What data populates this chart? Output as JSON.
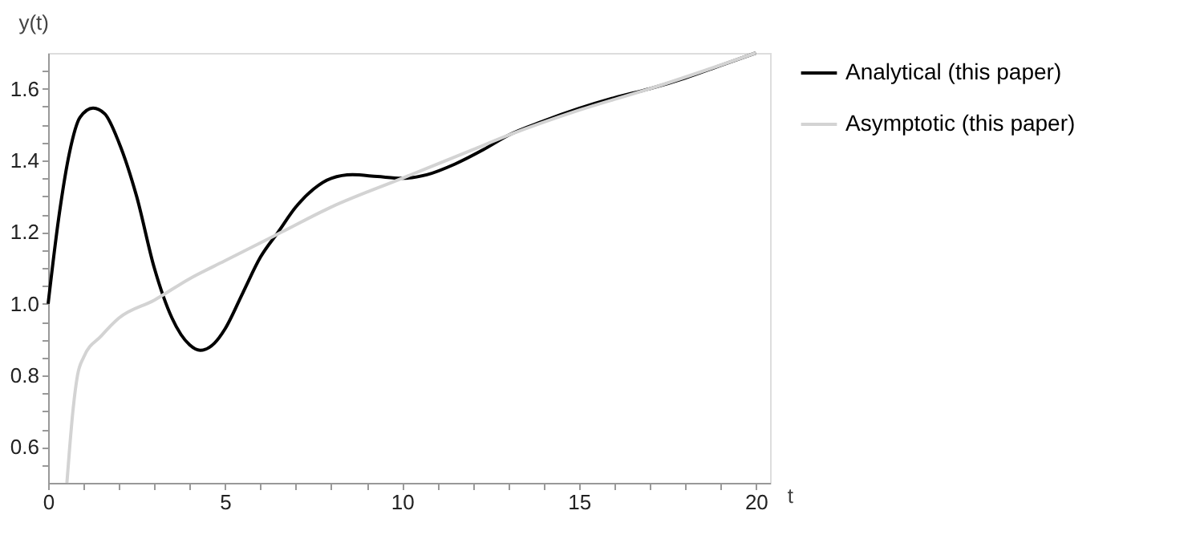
{
  "chart_data": {
    "type": "line",
    "xlabel": "t",
    "ylabel": "y(t)",
    "xlim": [
      0,
      20.4
    ],
    "ylim": [
      0.5,
      1.7
    ],
    "xticks": [
      0,
      {
        "value": 1,
        "label": null
      },
      {
        "value": 2,
        "label": null
      },
      {
        "value": 3,
        "label": null
      },
      {
        "value": 4,
        "label": null
      },
      5,
      {
        "value": 6,
        "label": null
      },
      {
        "value": 7,
        "label": null
      },
      {
        "value": 8,
        "label": null
      },
      {
        "value": 9,
        "label": null
      },
      10,
      {
        "value": 11,
        "label": null
      },
      {
        "value": 12,
        "label": null
      },
      {
        "value": 13,
        "label": null
      },
      {
        "value": 14,
        "label": null
      },
      15,
      {
        "value": 16,
        "label": null
      },
      {
        "value": 17,
        "label": null
      },
      {
        "value": 18,
        "label": null
      },
      {
        "value": 19,
        "label": null
      },
      20
    ],
    "yticks": [
      {
        "value": 0.55,
        "label": null
      },
      {
        "value": 0.6,
        "label": "0.6"
      },
      {
        "value": 0.65,
        "label": null
      },
      {
        "value": 0.7,
        "label": null
      },
      {
        "value": 0.75,
        "label": null
      },
      {
        "value": 0.8,
        "label": "0.8"
      },
      {
        "value": 0.85,
        "label": null
      },
      {
        "value": 0.9,
        "label": null
      },
      {
        "value": 0.95,
        "label": null
      },
      {
        "value": 1.0,
        "label": "1.0"
      },
      {
        "value": 1.05,
        "label": null
      },
      {
        "value": 1.1,
        "label": null
      },
      {
        "value": 1.15,
        "label": null
      },
      {
        "value": 1.2,
        "label": "1.2"
      },
      {
        "value": 1.25,
        "label": null
      },
      {
        "value": 1.3,
        "label": null
      },
      {
        "value": 1.35,
        "label": null
      },
      {
        "value": 1.4,
        "label": "1.4"
      },
      {
        "value": 1.45,
        "label": null
      },
      {
        "value": 1.5,
        "label": null
      },
      {
        "value": 1.55,
        "label": null
      },
      {
        "value": 1.6,
        "label": "1.6"
      },
      {
        "value": 1.65,
        "label": null
      }
    ],
    "grid": false,
    "legend": "right",
    "marker": "none",
    "line_style": "solid",
    "series": [
      {
        "name": "Analytical (this paper)",
        "color": "#000000",
        "x": [
          0,
          0.3,
          0.6,
          0.9,
          1.27,
          1.6,
          2,
          2.5,
          3,
          3.5,
          4,
          4.3,
          4.7,
          5,
          5.5,
          6,
          6.5,
          7,
          7.5,
          8,
          8.6,
          9.3,
          10,
          10.7,
          11.5,
          12.3,
          13,
          14,
          15,
          16,
          17,
          18,
          19,
          20
        ],
        "values": [
          1.0,
          1.24,
          1.42,
          1.52,
          1.546,
          1.53,
          1.45,
          1.3,
          1.1,
          0.96,
          0.885,
          0.87,
          0.89,
          0.93,
          1.03,
          1.13,
          1.2,
          1.27,
          1.32,
          1.35,
          1.36,
          1.355,
          1.35,
          1.36,
          1.39,
          1.43,
          1.47,
          1.51,
          1.545,
          1.575,
          1.6,
          1.63,
          1.665,
          1.7
        ]
      },
      {
        "name": "Asymptotic (this paper)",
        "color": "#d3d3d3",
        "x": [
          0.53,
          0.61,
          0.7,
          0.83,
          1,
          1.5,
          2,
          3,
          4,
          5,
          6,
          6.6,
          8,
          10,
          12,
          13,
          15,
          17,
          20
        ],
        "values": [
          0.5,
          0.6,
          0.7,
          0.8,
          0.85,
          0.91,
          0.96,
          1.01,
          1.07,
          1.12,
          1.17,
          1.2,
          1.27,
          1.35,
          1.43,
          1.47,
          1.54,
          1.6,
          1.7
        ]
      }
    ]
  }
}
